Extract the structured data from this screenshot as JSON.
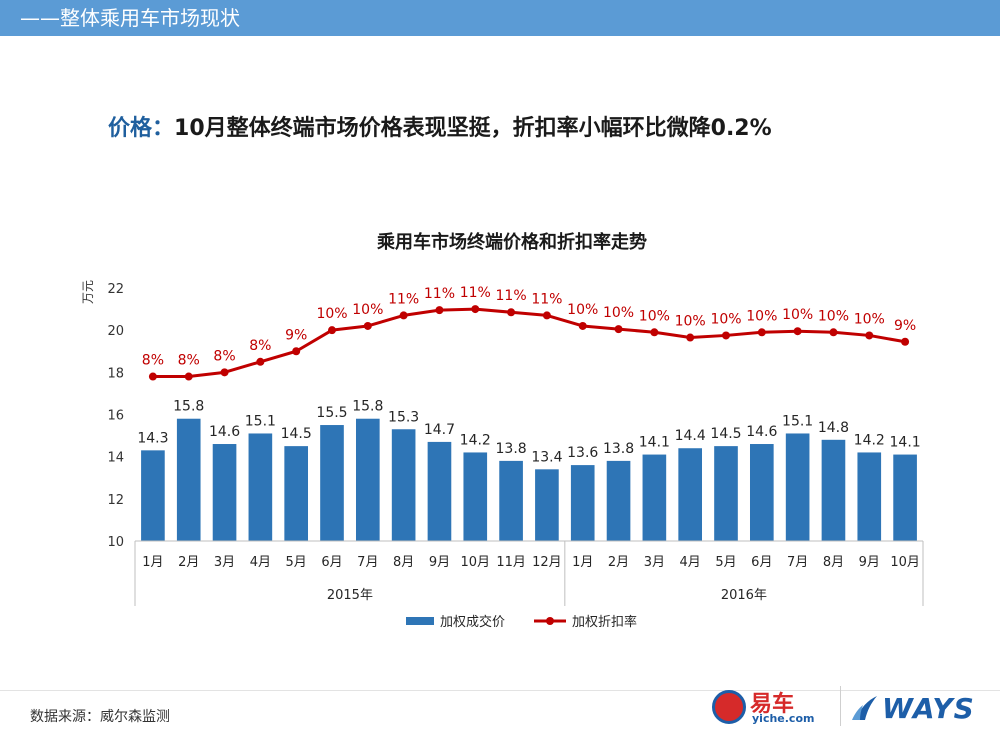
{
  "header": {
    "title": "——整体乘用车市场现状"
  },
  "headline": {
    "key": "价格：",
    "text": "10月整体终端市场价格表现坚挺，折扣率小幅环比微降0.2%"
  },
  "colors": {
    "bar": "#2e75b6",
    "line": "#c00000",
    "header_bg": "#5b9bd5",
    "label_red": "#c00000"
  },
  "chart_data": {
    "type": "bar",
    "title": "乘用车市场终端价格和折扣率走势",
    "ylabel": "万元",
    "ylim": [
      10,
      22
    ],
    "yticks": [
      "10",
      "12",
      "14",
      "16",
      "18",
      "20",
      "22"
    ],
    "categories": [
      "1月",
      "2月",
      "3月",
      "4月",
      "5月",
      "6月",
      "7月",
      "8月",
      "9月",
      "10月",
      "11月",
      "12月",
      "1月",
      "2月",
      "3月",
      "4月",
      "5月",
      "6月",
      "7月",
      "8月",
      "9月",
      "10月"
    ],
    "groups": [
      {
        "label": "2015年",
        "count": 12
      },
      {
        "label": "2016年",
        "count": 10
      }
    ],
    "series": [
      {
        "name": "加权成交价",
        "kind": "bar",
        "values": [
          14.3,
          15.8,
          14.6,
          15.1,
          14.5,
          15.5,
          15.8,
          15.3,
          14.7,
          14.2,
          13.8,
          13.4,
          13.6,
          13.8,
          14.1,
          14.4,
          14.5,
          14.6,
          15.1,
          14.8,
          14.2,
          14.1
        ],
        "labels": [
          "14.3",
          "15.8",
          "14.6",
          "15.1",
          "14.5",
          "15.5",
          "15.8",
          "15.3",
          "14.7",
          "14.2",
          "13.8",
          "13.4",
          "13.6",
          "13.8",
          "14.1",
          "14.4",
          "14.5",
          "14.6",
          "15.1",
          "14.8",
          "14.2",
          "14.1"
        ]
      },
      {
        "name": "加权折扣率",
        "kind": "line",
        "plot_values": [
          17.8,
          17.8,
          18.0,
          18.5,
          19.0,
          20.0,
          20.2,
          20.7,
          20.95,
          21.0,
          20.85,
          20.7,
          20.2,
          20.05,
          19.9,
          19.65,
          19.75,
          19.9,
          19.95,
          19.9,
          19.75,
          19.45
        ],
        "labels": [
          "8%",
          "8%",
          "8%",
          "8%",
          "9%",
          "10%",
          "10%",
          "11%",
          "11%",
          "11%",
          "11%",
          "11%",
          "10%",
          "10%",
          "10%",
          "10%",
          "10%",
          "10%",
          "10%",
          "10%",
          "10%",
          "9%"
        ]
      }
    ],
    "legend": {
      "position": "bottom",
      "entries": [
        "加权成交价",
        "加权折扣率"
      ]
    }
  },
  "footer": {
    "source": "数据来源：威尔森监测",
    "logo1_name": "易车",
    "logo1_url": "yiche.com",
    "logo2_name": "WAYS"
  }
}
